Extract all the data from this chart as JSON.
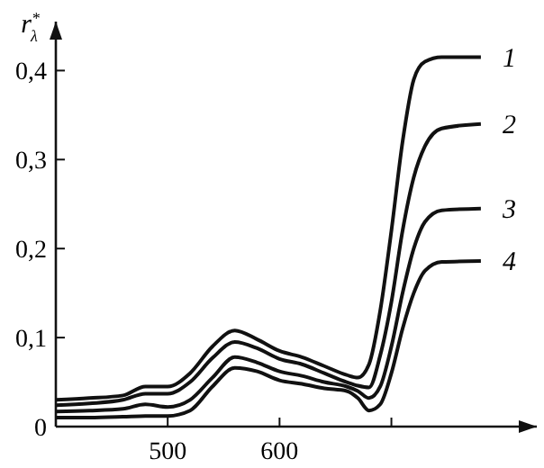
{
  "chart_data": {
    "type": "line",
    "ylabel": "r$^{*}$$_{λ}$",
    "x": [
      400,
      430,
      460,
      480,
      500,
      520,
      540,
      560,
      580,
      600,
      620,
      640,
      660,
      670,
      680,
      690,
      700,
      710,
      720,
      730,
      745,
      780
    ],
    "xlim": [
      400,
      830
    ],
    "xticks": [
      500,
      600,
      {
        "value": 700,
        "label": null
      }
    ],
    "ylim": [
      0,
      0.455
    ],
    "yticks": [
      0,
      {
        "value": 0.1,
        "label": "0,1"
      },
      {
        "value": 0.2,
        "label": "0,2"
      },
      {
        "value": 0.3,
        "label": "0,3"
      },
      {
        "value": 0.4,
        "label": "0,4"
      }
    ],
    "grid": false,
    "legend": false,
    "series": [
      {
        "name": "1",
        "color": "#111111",
        "values": [
          0.03,
          0.032,
          0.035,
          0.045,
          0.045,
          0.06,
          0.09,
          0.108,
          0.098,
          0.085,
          0.078,
          0.068,
          0.058,
          0.055,
          0.07,
          0.13,
          0.22,
          0.32,
          0.39,
          0.41,
          0.415,
          0.415
        ]
      },
      {
        "name": "2",
        "color": "#111111",
        "values": [
          0.024,
          0.026,
          0.03,
          0.037,
          0.037,
          0.05,
          0.077,
          0.095,
          0.088,
          0.076,
          0.07,
          0.06,
          0.05,
          0.046,
          0.044,
          0.08,
          0.14,
          0.22,
          0.28,
          0.315,
          0.335,
          0.34
        ]
      },
      {
        "name": "3",
        "color": "#111111",
        "values": [
          0.017,
          0.018,
          0.02,
          0.025,
          0.022,
          0.03,
          0.055,
          0.078,
          0.072,
          0.062,
          0.057,
          0.05,
          0.045,
          0.04,
          0.032,
          0.045,
          0.09,
          0.15,
          0.2,
          0.23,
          0.243,
          0.245
        ]
      },
      {
        "name": "4",
        "color": "#111111",
        "values": [
          0.01,
          0.01,
          0.011,
          0.012,
          0.012,
          0.018,
          0.045,
          0.066,
          0.062,
          0.052,
          0.048,
          0.043,
          0.04,
          0.032,
          0.018,
          0.025,
          0.06,
          0.11,
          0.15,
          0.175,
          0.185,
          0.186
        ]
      }
    ]
  }
}
